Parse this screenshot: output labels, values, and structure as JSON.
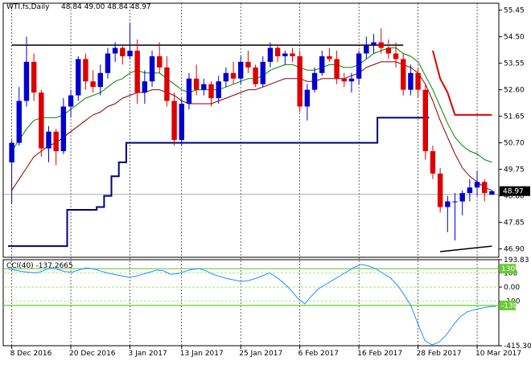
{
  "chart_data": [
    {
      "type": "candlestick",
      "title": "WTI.fs,Daily",
      "ohlc_text": "48.84 49.00 48.84 48.97",
      "current_price_label": "48.97",
      "y_ticks": [
        "55.45",
        "54.50",
        "53.55",
        "52.60",
        "51.65",
        "50.70",
        "49.75",
        "48.80",
        "47.85",
        "46.90"
      ],
      "ylim": [
        46.6,
        55.7
      ],
      "x_tick_labels": [
        "8 Dec 2016",
        "20 Dec 2016",
        "3 Jan 2017",
        "13 Jan 2017",
        "25 Jan 2017",
        "6 Feb 2017",
        "16 Feb 2017",
        "28 Feb 2017",
        "10 Mar 2017"
      ],
      "x_tick_index": [
        0,
        8,
        16,
        23,
        31,
        39,
        47,
        55,
        63
      ],
      "grid": "vertical dashed at date ticks",
      "colors": {
        "bull": "#0000cc",
        "bear": "#dd0000",
        "ma_fast": "#008800",
        "ma_slow": "#880000",
        "support": "#000080",
        "stop": "#dd0000",
        "trendline": "#000000"
      },
      "candles": [
        [
          50.0,
          50.8,
          48.5,
          50.7
        ],
        [
          50.7,
          52.7,
          50.6,
          52.2
        ],
        [
          52.2,
          54.5,
          52.0,
          53.6
        ],
        [
          53.6,
          53.9,
          52.2,
          52.5
        ],
        [
          52.5,
          52.6,
          50.2,
          50.5
        ],
        [
          50.5,
          51.3,
          50.0,
          51.1
        ],
        [
          51.1,
          51.2,
          49.9,
          50.4
        ],
        [
          50.4,
          52.3,
          50.3,
          52.0
        ],
        [
          52.0,
          52.6,
          51.6,
          52.4
        ],
        [
          52.4,
          53.8,
          52.2,
          53.7
        ],
        [
          53.7,
          53.9,
          52.6,
          52.9
        ],
        [
          52.9,
          53.3,
          52.5,
          52.7
        ],
        [
          52.7,
          53.5,
          52.4,
          53.2
        ],
        [
          53.2,
          54.1,
          53.0,
          53.9
        ],
        [
          53.9,
          54.3,
          53.6,
          54.1
        ],
        [
          54.1,
          54.2,
          53.5,
          53.8
        ],
        [
          53.8,
          55.0,
          53.7,
          54.0
        ],
        [
          54.0,
          54.4,
          52.1,
          52.5
        ],
        [
          52.5,
          53.3,
          52.1,
          52.9
        ],
        [
          52.9,
          54.0,
          52.7,
          53.8
        ],
        [
          53.8,
          54.3,
          53.2,
          53.4
        ],
        [
          53.4,
          53.8,
          52.0,
          52.2
        ],
        [
          52.2,
          52.5,
          50.6,
          50.8
        ],
        [
          50.8,
          52.3,
          50.6,
          52.1
        ],
        [
          52.1,
          53.2,
          51.9,
          53.0
        ],
        [
          53.0,
          53.5,
          52.4,
          52.6
        ],
        [
          52.6,
          53.0,
          52.4,
          52.8
        ],
        [
          52.8,
          52.9,
          52.0,
          52.3
        ],
        [
          52.3,
          53.1,
          52.1,
          52.9
        ],
        [
          52.9,
          53.4,
          52.7,
          53.2
        ],
        [
          53.2,
          53.6,
          52.8,
          53.0
        ],
        [
          53.0,
          53.8,
          52.8,
          53.6
        ],
        [
          53.6,
          54.0,
          53.2,
          53.4
        ],
        [
          53.4,
          53.5,
          52.7,
          52.8
        ],
        [
          52.8,
          53.8,
          52.7,
          53.6
        ],
        [
          53.6,
          54.3,
          53.4,
          54.1
        ],
        [
          54.1,
          54.2,
          53.6,
          53.8
        ],
        [
          53.8,
          54.0,
          53.5,
          53.9
        ],
        [
          53.9,
          54.1,
          53.6,
          53.8
        ],
        [
          53.8,
          54.0,
          51.8,
          52.0
        ],
        [
          52.0,
          52.8,
          51.5,
          52.6
        ],
        [
          52.6,
          53.4,
          52.5,
          53.2
        ],
        [
          53.2,
          54.0,
          53.1,
          53.8
        ],
        [
          53.8,
          54.1,
          53.6,
          53.7
        ],
        [
          53.7,
          54.0,
          52.8,
          53.0
        ],
        [
          53.0,
          53.2,
          52.7,
          52.9
        ],
        [
          52.9,
          53.2,
          52.5,
          53.0
        ],
        [
          53.0,
          54.0,
          52.8,
          53.9
        ],
        [
          53.9,
          54.5,
          53.7,
          54.2
        ],
        [
          54.2,
          54.6,
          53.9,
          54.3
        ],
        [
          54.3,
          54.8,
          53.9,
          54.1
        ],
        [
          54.1,
          54.4,
          53.7,
          53.9
        ],
        [
          53.9,
          54.3,
          53.4,
          53.7
        ],
        [
          53.7,
          53.9,
          52.4,
          52.6
        ],
        [
          52.6,
          53.5,
          52.4,
          53.2
        ],
        [
          53.2,
          53.4,
          52.3,
          52.6
        ],
        [
          52.6,
          52.8,
          50.1,
          50.4
        ],
        [
          50.4,
          50.6,
          49.4,
          49.6
        ],
        [
          49.6,
          49.8,
          48.2,
          48.4
        ],
        [
          48.4,
          48.8,
          47.5,
          48.6
        ],
        [
          48.6,
          48.9,
          47.2,
          48.6
        ],
        [
          48.6,
          49.0,
          48.1,
          48.9
        ],
        [
          48.9,
          49.4,
          48.6,
          49.1
        ],
        [
          49.1,
          49.7,
          48.8,
          49.3
        ],
        [
          49.3,
          49.4,
          48.6,
          48.9
        ],
        [
          48.84,
          49.0,
          48.84,
          48.97
        ]
      ],
      "ma_fast": [
        50.4,
        50.8,
        51.2,
        51.5,
        51.6,
        51.6,
        51.6,
        51.7,
        51.9,
        52.1,
        52.3,
        52.4,
        52.5,
        52.7,
        52.9,
        53.0,
        53.2,
        53.3,
        53.2,
        53.2,
        53.2,
        53.0,
        52.8,
        52.6,
        52.5,
        52.6,
        52.6,
        52.6,
        52.6,
        52.7,
        52.8,
        52.9,
        53.0,
        53.0,
        53.1,
        53.3,
        53.4,
        53.5,
        53.5,
        53.4,
        53.3,
        53.3,
        53.4,
        53.5,
        53.5,
        53.4,
        53.4,
        53.5,
        53.7,
        53.9,
        54.0,
        54.1,
        54.1,
        53.9,
        53.8,
        53.6,
        53.1,
        52.6,
        52.0,
        51.4,
        50.9,
        50.6,
        50.4,
        50.3,
        50.1,
        50.0
      ],
      "ma_slow": [
        49.0,
        49.4,
        49.8,
        50.2,
        50.4,
        50.6,
        50.7,
        50.9,
        51.1,
        51.3,
        51.5,
        51.7,
        51.8,
        52.0,
        52.1,
        52.3,
        52.4,
        52.5,
        52.5,
        52.6,
        52.6,
        52.5,
        52.4,
        52.2,
        52.1,
        52.1,
        52.1,
        52.1,
        52.2,
        52.3,
        52.4,
        52.5,
        52.6,
        52.6,
        52.7,
        52.8,
        52.9,
        53.0,
        53.0,
        53.0,
        52.9,
        52.9,
        53.0,
        53.0,
        53.0,
        53.0,
        53.1,
        53.2,
        53.4,
        53.5,
        53.6,
        53.6,
        53.6,
        53.5,
        53.4,
        53.2,
        52.8,
        52.2,
        51.5,
        50.9,
        50.3,
        49.8,
        49.5,
        49.3,
        49.1,
        49.0
      ],
      "support_line": [
        47.0,
        47.0,
        47.0,
        47.0,
        47.0,
        47.0,
        47.0,
        47.0,
        48.3,
        48.3,
        48.3,
        48.3,
        48.4,
        48.8,
        49.5,
        50.0,
        50.7,
        50.7,
        50.7,
        50.7,
        50.7,
        50.7,
        50.7,
        50.7,
        50.7,
        50.7,
        50.7,
        50.7,
        50.7,
        50.7,
        50.7,
        50.7,
        50.7,
        50.7,
        50.7,
        50.7,
        50.7,
        50.7,
        50.7,
        50.7,
        50.7,
        50.7,
        50.7,
        50.7,
        50.7,
        50.7,
        50.7,
        50.7,
        50.7,
        50.7,
        51.6,
        51.6,
        51.6,
        51.6,
        51.6,
        51.6,
        51.6
      ],
      "stop_line": [
        null,
        null,
        null,
        null,
        null,
        null,
        null,
        null,
        null,
        null,
        null,
        null,
        null,
        null,
        null,
        null,
        null,
        null,
        null,
        null,
        null,
        null,
        null,
        null,
        null,
        null,
        null,
        null,
        null,
        null,
        null,
        null,
        null,
        null,
        null,
        null,
        null,
        null,
        null,
        null,
        null,
        null,
        null,
        null,
        null,
        null,
        null,
        null,
        null,
        null,
        null,
        null,
        null,
        null,
        null,
        null,
        null,
        54.0,
        53.0,
        52.5,
        51.7,
        51.7,
        51.7,
        51.7,
        51.7,
        51.7
      ],
      "resistance_line": [
        [
          0,
          54.2
        ],
        [
          53,
          54.2
        ]
      ],
      "trend_line": [
        [
          58,
          46.8
        ],
        [
          65,
          47.0
        ]
      ],
      "ref_line": 48.85
    },
    {
      "type": "line",
      "title": "CCI(40) -137.2665",
      "y_ticks": [
        "193.83",
        "100",
        "0.00",
        "-100",
        "-415.306"
      ],
      "levels": [
        130,
        100,
        0,
        -100,
        -130
      ],
      "level_labels": [
        "130",
        "-130"
      ],
      "ylim": [
        -415.306,
        193.83
      ],
      "values": [
        130,
        120,
        110,
        105,
        100,
        115,
        140,
        125,
        110,
        105,
        120,
        135,
        130,
        115,
        100,
        90,
        80,
        70,
        75,
        90,
        105,
        120,
        115,
        90,
        95,
        110,
        125,
        130,
        115,
        90,
        75,
        60,
        50,
        40,
        45,
        60,
        80,
        100,
        70,
        30,
        -20,
        -80,
        -120,
        -60,
        -10,
        20,
        50,
        80,
        110,
        140,
        160,
        150,
        130,
        100,
        70,
        20,
        -50,
        -130,
        -260,
        -380,
        -410,
        -390,
        -340,
        -270,
        -210,
        -175,
        -160,
        -150,
        -140,
        -137
      ]
    }
  ]
}
